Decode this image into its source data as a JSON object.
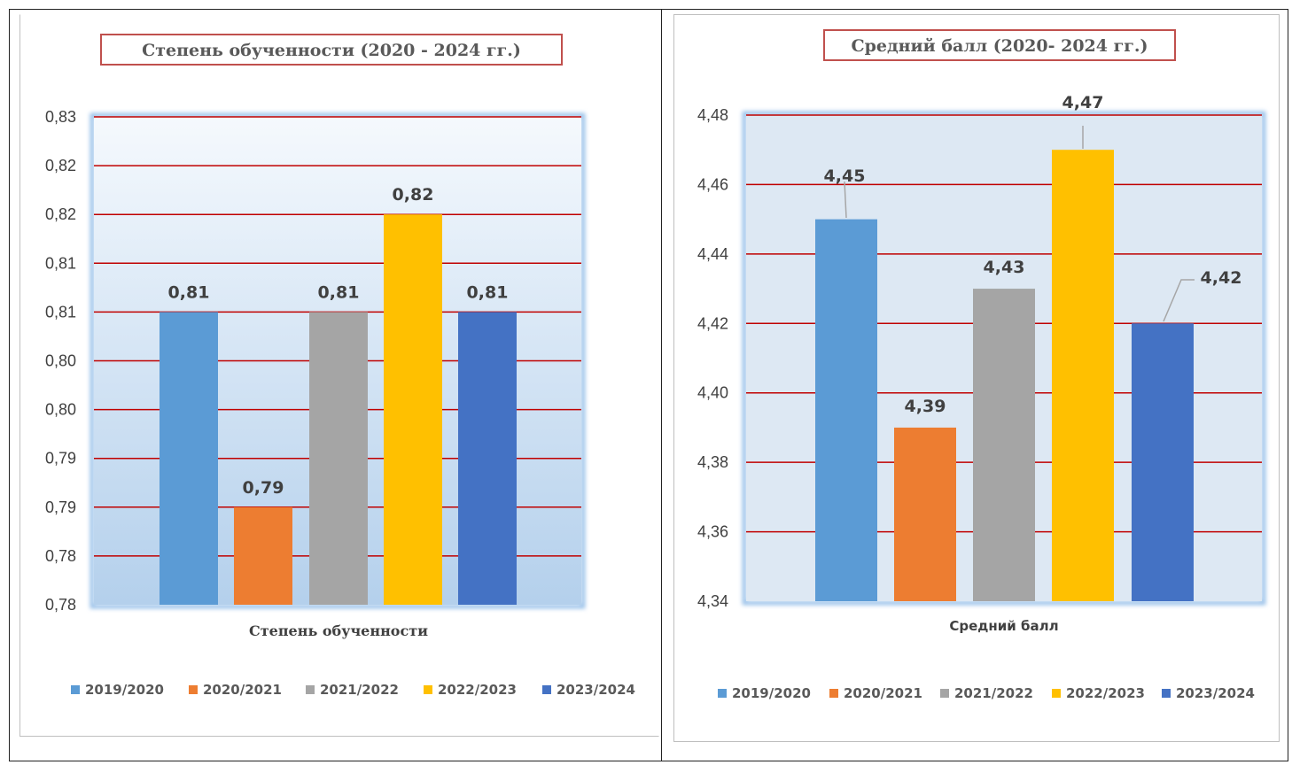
{
  "chart_data": [
    {
      "type": "bar",
      "title": "Степень обученности (2020 - 2024 гг.)",
      "xlabel": "Степень обученности",
      "ylabel": "",
      "y_tick_labels": [
        "0,78",
        "0,78",
        "0,79",
        "0,79",
        "0,80",
        "0,80",
        "0,81",
        "0,81",
        "0,82",
        "0,82",
        "0,83"
      ],
      "ylim": [
        0.78,
        0.83
      ],
      "grid": true,
      "legend_position": "bottom",
      "series": [
        {
          "name": "2019/2020",
          "value": 0.81,
          "label": "0,81",
          "color": "#5b9bd5"
        },
        {
          "name": "2020/2021",
          "value": 0.79,
          "label": "0,79",
          "color": "#ed7d31"
        },
        {
          "name": "2021/2022",
          "value": 0.81,
          "label": "0,81",
          "color": "#a5a5a5"
        },
        {
          "name": "2022/2023",
          "value": 0.82,
          "label": "0,82",
          "color": "#ffc000"
        },
        {
          "name": "2023/2024",
          "value": 0.81,
          "label": "0,81",
          "color": "#4472c4"
        }
      ]
    },
    {
      "type": "bar",
      "title": "Средний балл (2020- 2024 гг.)",
      "xlabel": "Средний балл",
      "ylabel": "",
      "y_tick_labels": [
        "4,34",
        "4,36",
        "4,38",
        "4,40",
        "4,42",
        "4,44",
        "4,46",
        "4,48"
      ],
      "ylim": [
        4.34,
        4.48
      ],
      "grid": true,
      "legend_position": "bottom",
      "series": [
        {
          "name": "2019/2020",
          "value": 4.45,
          "label": "4,45",
          "color": "#5b9bd5"
        },
        {
          "name": "2020/2021",
          "value": 4.39,
          "label": "4,39",
          "color": "#ed7d31"
        },
        {
          "name": "2021/2022",
          "value": 4.43,
          "label": "4,43",
          "color": "#a5a5a5"
        },
        {
          "name": "2022/2023",
          "value": 4.47,
          "label": "4,47",
          "color": "#ffc000"
        },
        {
          "name": "2023/2024",
          "value": 4.42,
          "label": "4,42",
          "color": "#4472c4"
        }
      ]
    }
  ]
}
